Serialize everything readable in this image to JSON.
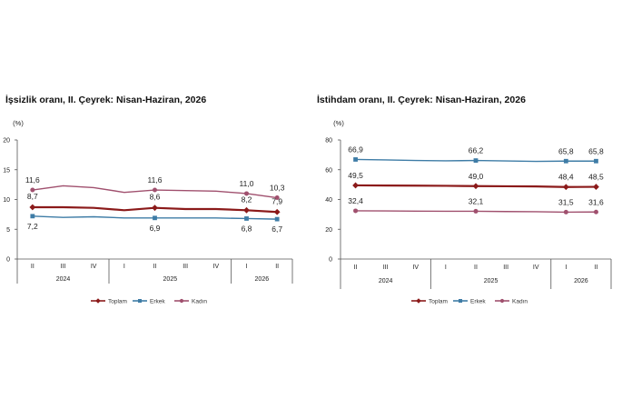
{
  "colors": {
    "toplam": "#8B1A1A",
    "erkek": "#3E7CA6",
    "kadin": "#A0506E"
  },
  "chart_data": [
    {
      "type": "line",
      "title": "İşsizlik oranı, II. Çeyrek: Nisan-Haziran, 2026",
      "ylabel": "(%)",
      "ylim": [
        0,
        20
      ],
      "yticks": [
        0,
        5,
        10,
        15,
        20
      ],
      "quarters": [
        "II",
        "III",
        "IV",
        "I",
        "II",
        "III",
        "IV",
        "I",
        "II"
      ],
      "years": [
        {
          "label": "2024",
          "from": 0,
          "to": 2
        },
        {
          "label": "2025",
          "from": 3,
          "to": 6
        },
        {
          "label": "2026",
          "from": 7,
          "to": 8
        }
      ],
      "series": [
        {
          "name": "Toplam",
          "color_key": "toplam",
          "values": [
            8.7,
            8.7,
            8.6,
            8.2,
            8.6,
            8.4,
            8.4,
            8.2,
            7.9
          ],
          "labels": {
            "0": "8,7",
            "4": "8,6",
            "7": "8,2",
            "8": "7,9"
          }
        },
        {
          "name": "Erkek",
          "color_key": "erkek",
          "values": [
            7.2,
            7.0,
            7.1,
            6.9,
            6.9,
            6.9,
            6.9,
            6.8,
            6.7
          ],
          "labels": {
            "0": "7,2",
            "4": "6,9",
            "7": "6,8",
            "8": "6,7"
          }
        },
        {
          "name": "Kadın",
          "color_key": "kadin",
          "values": [
            11.6,
            12.3,
            12.0,
            11.2,
            11.6,
            11.5,
            11.4,
            11.0,
            10.3
          ],
          "labels": {
            "0": "11,6",
            "4": "11,6",
            "7": "11,0",
            "8": "10,3"
          }
        }
      ],
      "legend": "bottom",
      "grid": false
    },
    {
      "type": "line",
      "title": "İstihdam oranı, II. Çeyrek: Nisan-Haziran, 2026",
      "ylabel": "(%)",
      "ylim": [
        0,
        80
      ],
      "yticks": [
        0,
        20,
        40,
        60,
        80
      ],
      "quarters": [
        "II",
        "III",
        "IV",
        "I",
        "II",
        "III",
        "IV",
        "I",
        "II"
      ],
      "years": [
        {
          "label": "2024",
          "from": 0,
          "to": 2
        },
        {
          "label": "2025",
          "from": 3,
          "to": 6
        },
        {
          "label": "2026",
          "from": 7,
          "to": 8
        }
      ],
      "series": [
        {
          "name": "Toplam",
          "color_key": "toplam",
          "values": [
            49.5,
            49.4,
            49.3,
            49.2,
            49.0,
            48.9,
            48.8,
            48.4,
            48.5
          ],
          "labels": {
            "0": "49,5",
            "4": "49,0",
            "7": "48,4",
            "8": "48,5"
          }
        },
        {
          "name": "Erkek",
          "color_key": "erkek",
          "values": [
            66.9,
            66.6,
            66.2,
            66.0,
            66.2,
            65.9,
            65.6,
            65.8,
            65.8
          ],
          "labels": {
            "0": "66,9",
            "4": "66,2",
            "7": "65,8",
            "8": "65,8"
          }
        },
        {
          "name": "Kadın",
          "color_key": "kadin",
          "values": [
            32.4,
            32.3,
            32.2,
            32.1,
            32.1,
            31.9,
            31.8,
            31.5,
            31.6
          ],
          "labels": {
            "0": "32,4",
            "4": "32,1",
            "7": "31,5",
            "8": "31,6"
          }
        }
      ],
      "legend": "bottom",
      "grid": false
    }
  ]
}
